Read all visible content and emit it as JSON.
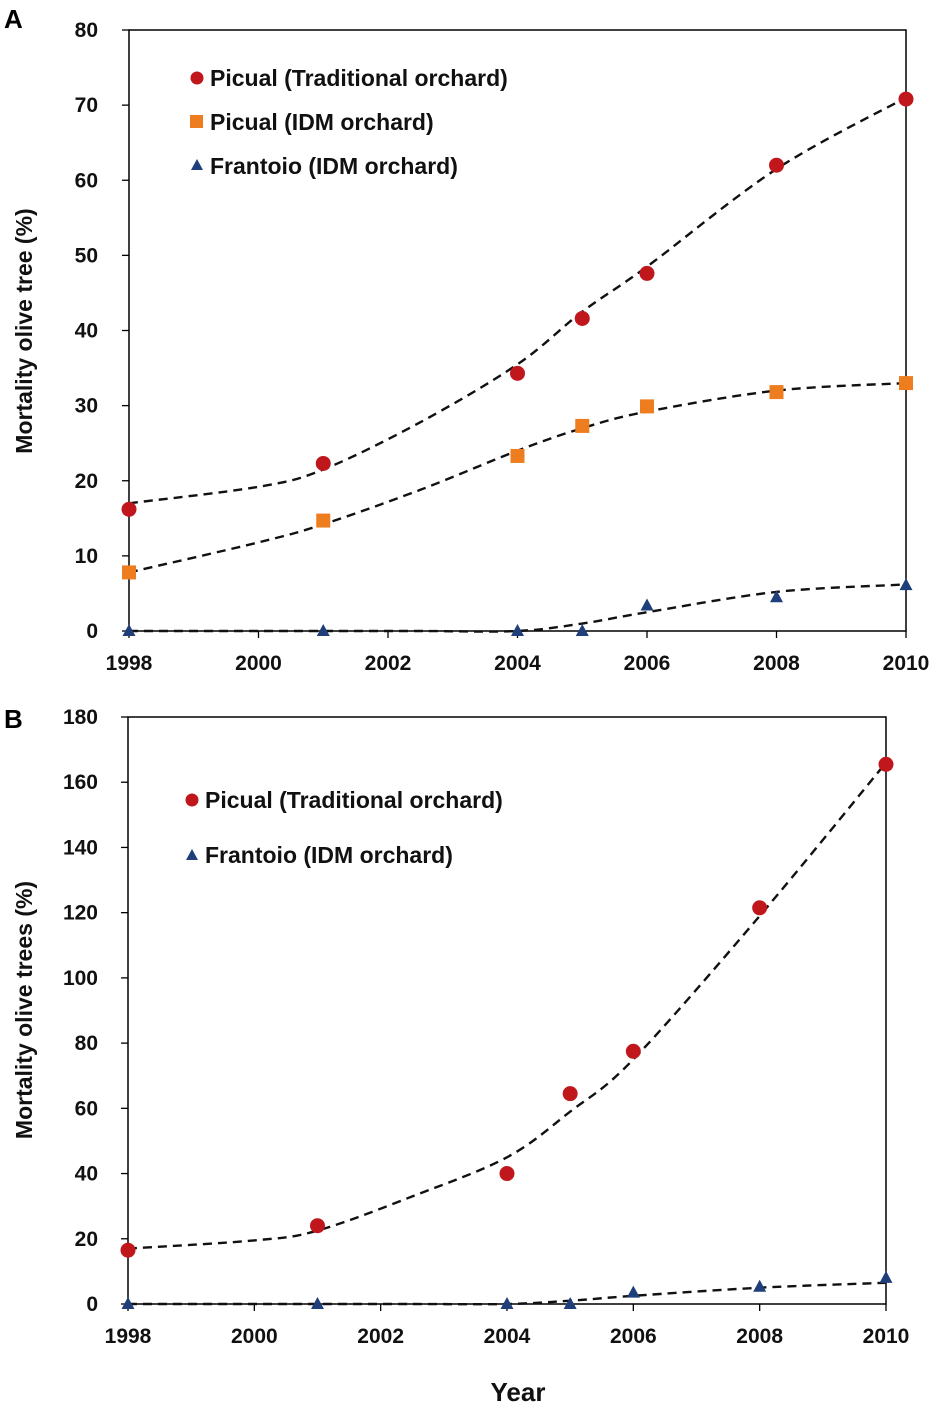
{
  "chart_data": [
    {
      "panel": "A",
      "type": "scatter",
      "ylabel": "Mortality olive tree (%)",
      "xlabel": "",
      "xlim": [
        1998,
        2010
      ],
      "ylim": [
        0,
        80
      ],
      "xticks": [
        "1998",
        "2000",
        "2002",
        "2004",
        "2006",
        "2008",
        "2010"
      ],
      "yticks": [
        "0",
        "10",
        "20",
        "30",
        "40",
        "50",
        "60",
        "70",
        "80"
      ],
      "series": [
        {
          "name": "Picual (Traditional orchard)",
          "marker": "circle",
          "color": "#c0171d",
          "x": [
            1998,
            2001,
            2004,
            2005,
            2006,
            2008,
            2010
          ],
          "values": [
            16.2,
            22.3,
            34.3,
            41.6,
            47.6,
            62.0,
            70.8
          ],
          "fit": [
            17.0,
            19.2,
            21.5,
            27.8,
            35.5,
            42.5,
            48.5,
            61.5,
            71.0
          ]
        },
        {
          "name": "Picual (IDM orchard)",
          "marker": "square",
          "color": "#ee7d1f",
          "x": [
            1998,
            2001,
            2004,
            2005,
            2006,
            2008,
            2010
          ],
          "values": [
            7.8,
            14.7,
            23.3,
            27.3,
            29.9,
            31.8,
            33.0
          ],
          "fit": [
            7.8,
            11.8,
            14.2,
            18.8,
            24.0,
            27.0,
            29.2,
            32.0,
            33.0
          ]
        },
        {
          "name": "Frantoio (IDM orchard)",
          "marker": "triangle",
          "color": "#1f3f7a",
          "x": [
            1998,
            2001,
            2004,
            2005,
            2006,
            2008,
            2010
          ],
          "values": [
            0,
            0,
            0,
            0,
            3.4,
            4.5,
            6.1
          ],
          "fit": [
            0,
            0,
            0,
            0,
            0,
            1.0,
            2.5,
            5.2,
            6.2
          ]
        }
      ],
      "fit_x": [
        1998,
        2000,
        2001,
        2002.5,
        2004,
        2005,
        2006,
        2008,
        2010
      ],
      "legend": "top-left"
    },
    {
      "panel": "B",
      "type": "scatter",
      "ylabel": "Mortality olive trees (%)",
      "xlabel": "Year",
      "xlim": [
        1998,
        2010
      ],
      "ylim": [
        0,
        180
      ],
      "xticks": [
        "1998",
        "2000",
        "2002",
        "2004",
        "2006",
        "2008",
        "2010"
      ],
      "yticks": [
        "0",
        "20",
        "40",
        "60",
        "80",
        "100",
        "120",
        "140",
        "160",
        "180"
      ],
      "series": [
        {
          "name": "Picual (Traditional orchard)",
          "marker": "circle",
          "color": "#c0171d",
          "x": [
            1998,
            2001,
            2004,
            2005,
            2006,
            2008,
            2010
          ],
          "values": [
            16.5,
            24,
            40,
            64.5,
            77.5,
            121.5,
            165.5
          ],
          "fit": [
            17.0,
            19.5,
            22.5,
            33.0,
            45.0,
            59.0,
            75.0,
            119.0,
            166.0
          ]
        },
        {
          "name": "Frantoio (IDM orchard)",
          "marker": "triangle",
          "color": "#1f3f7a",
          "x": [
            1998,
            2001,
            2004,
            2005,
            2006,
            2008,
            2010
          ],
          "values": [
            0,
            0,
            0,
            0,
            3.5,
            5.3,
            8.0
          ],
          "fit": [
            0,
            0,
            0,
            0,
            0,
            1.0,
            2.5,
            5.0,
            6.5
          ]
        }
      ],
      "fit_x": [
        1998,
        2000,
        2001,
        2002.5,
        2004,
        2005,
        2006,
        2008,
        2010
      ],
      "legend": "top-left"
    }
  ]
}
